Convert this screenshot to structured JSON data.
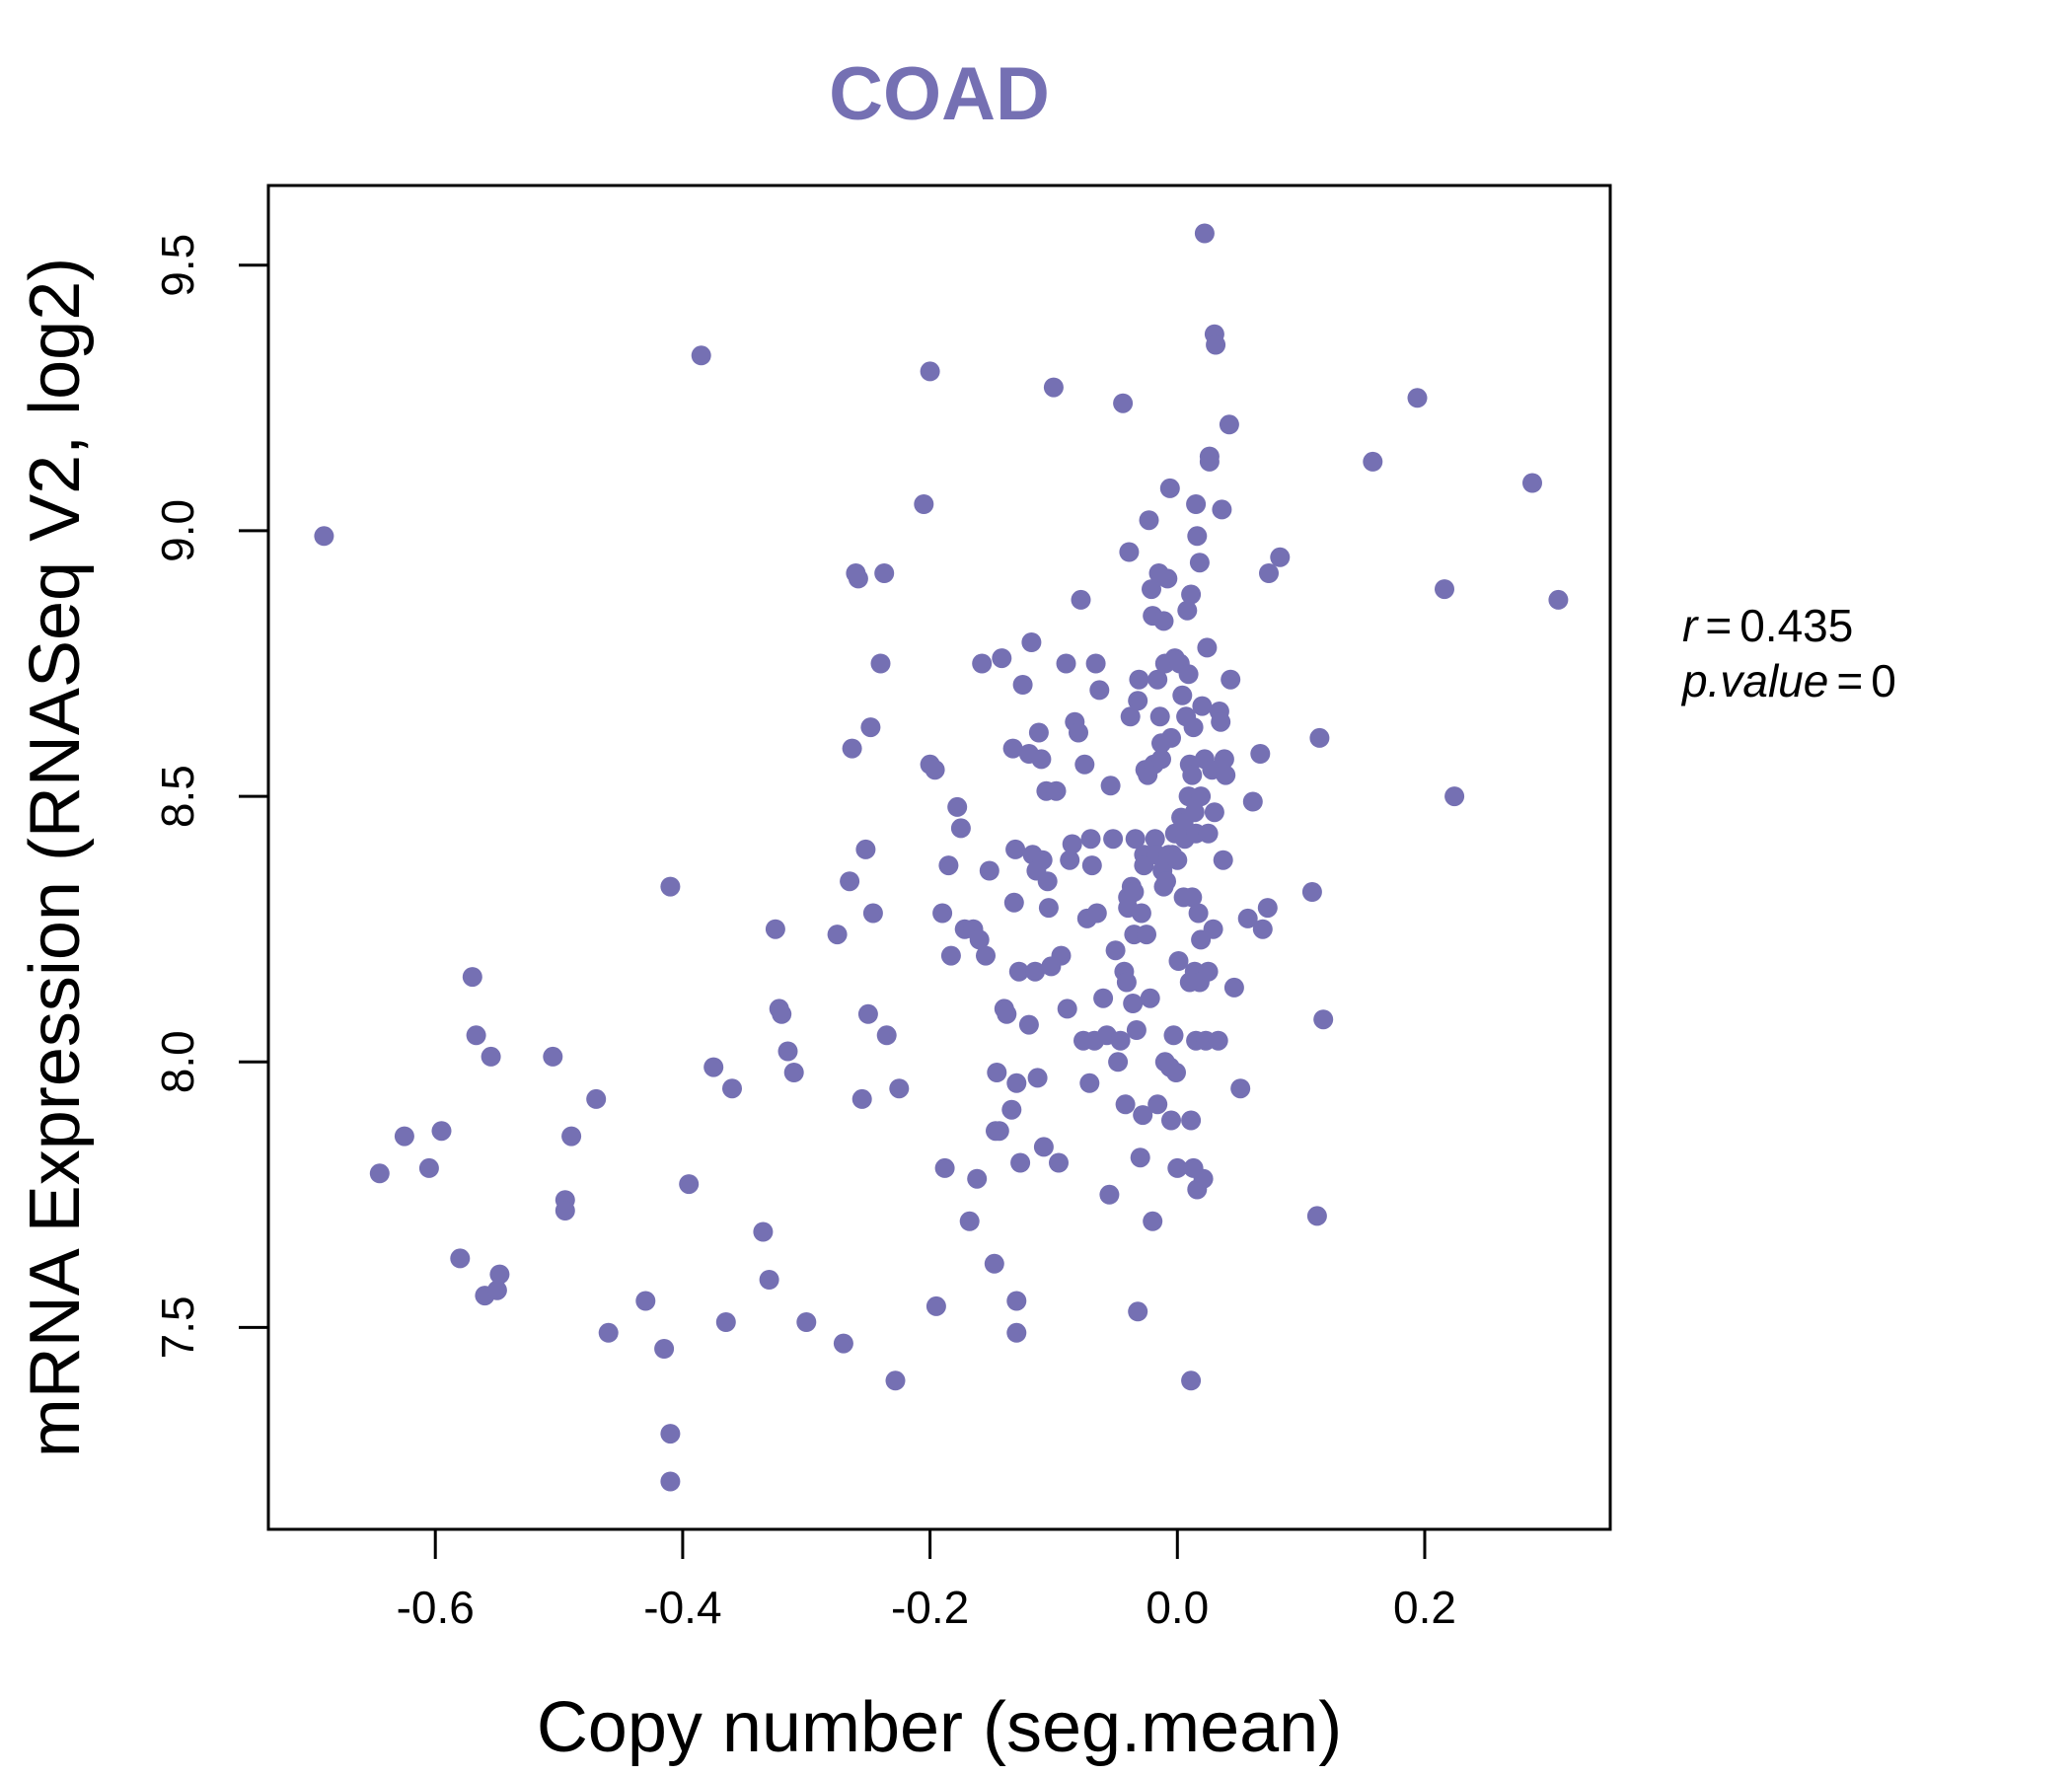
{
  "chart_data": {
    "type": "scatter",
    "title": "COAD",
    "xlabel": "Copy number (seg.mean)",
    "ylabel": "mRNA Expression (RNASeq V2, log2)",
    "xlim": [
      -0.735,
      0.35
    ],
    "ylim": [
      7.12,
      9.65
    ],
    "xticks": [
      -0.6,
      -0.4,
      -0.2,
      0.0,
      0.2
    ],
    "xtick_labels": [
      "-0.6",
      "-0.4",
      "-0.2",
      "0.0",
      "0.2"
    ],
    "yticks": [
      7.5,
      8.0,
      8.5,
      9.0,
      9.5
    ],
    "ytick_labels": [
      "7.5",
      "8.0",
      "8.5",
      "9.0",
      "9.5"
    ],
    "grid": false,
    "point_color": "#7570B3",
    "annotation": {
      "r_label": "r",
      "r_value": "0.435",
      "p_label": "p.value",
      "p_value": "0"
    },
    "points": [
      [
        -0.69,
        8.99
      ],
      [
        -0.645,
        7.79
      ],
      [
        -0.625,
        7.86
      ],
      [
        -0.605,
        7.8
      ],
      [
        -0.595,
        7.87
      ],
      [
        -0.58,
        7.63
      ],
      [
        -0.57,
        8.16
      ],
      [
        -0.567,
        8.05
      ],
      [
        -0.56,
        7.56
      ],
      [
        -0.555,
        8.01
      ],
      [
        -0.55,
        7.57
      ],
      [
        -0.548,
        7.6
      ],
      [
        -0.505,
        8.01
      ],
      [
        -0.495,
        7.74
      ],
      [
        -0.495,
        7.72
      ],
      [
        -0.49,
        7.86
      ],
      [
        -0.47,
        7.93
      ],
      [
        -0.46,
        7.49
      ],
      [
        -0.43,
        7.55
      ],
      [
        -0.415,
        7.46
      ],
      [
        -0.41,
        8.33
      ],
      [
        -0.41,
        7.3
      ],
      [
        -0.41,
        7.21
      ],
      [
        -0.395,
        7.77
      ],
      [
        -0.385,
        9.33
      ],
      [
        -0.375,
        7.99
      ],
      [
        -0.365,
        7.51
      ],
      [
        -0.36,
        7.95
      ],
      [
        -0.335,
        7.68
      ],
      [
        -0.33,
        7.59
      ],
      [
        -0.325,
        8.25
      ],
      [
        -0.322,
        8.1
      ],
      [
        -0.32,
        8.09
      ],
      [
        -0.315,
        8.02
      ],
      [
        -0.31,
        7.98
      ],
      [
        -0.3,
        7.51
      ],
      [
        -0.275,
        8.24
      ],
      [
        -0.27,
        7.47
      ],
      [
        -0.265,
        8.34
      ],
      [
        -0.263,
        8.59
      ],
      [
        -0.26,
        8.92
      ],
      [
        -0.258,
        8.91
      ],
      [
        -0.255,
        7.93
      ],
      [
        -0.252,
        8.4
      ],
      [
        -0.25,
        8.09
      ],
      [
        -0.248,
        8.63
      ],
      [
        -0.246,
        8.28
      ],
      [
        -0.24,
        8.75
      ],
      [
        -0.237,
        8.92
      ],
      [
        -0.235,
        8.05
      ],
      [
        -0.228,
        7.4
      ],
      [
        -0.225,
        7.95
      ],
      [
        -0.205,
        9.05
      ],
      [
        -0.2,
        8.56
      ],
      [
        -0.2,
        9.3
      ],
      [
        -0.196,
        8.55
      ],
      [
        -0.195,
        7.54
      ],
      [
        -0.19,
        8.28
      ],
      [
        -0.188,
        7.8
      ],
      [
        -0.185,
        8.37
      ],
      [
        -0.183,
        8.2
      ],
      [
        -0.178,
        8.48
      ],
      [
        -0.175,
        8.44
      ],
      [
        -0.172,
        8.25
      ],
      [
        -0.168,
        7.7
      ],
      [
        -0.165,
        8.25
      ],
      [
        -0.162,
        7.78
      ],
      [
        -0.16,
        8.23
      ],
      [
        -0.158,
        8.75
      ],
      [
        -0.155,
        8.2
      ],
      [
        -0.152,
        8.36
      ],
      [
        -0.148,
        7.62
      ],
      [
        -0.147,
        7.87
      ],
      [
        -0.146,
        7.98
      ],
      [
        -0.144,
        7.87
      ],
      [
        -0.142,
        8.76
      ],
      [
        -0.14,
        8.1
      ],
      [
        -0.138,
        8.09
      ],
      [
        -0.134,
        7.91
      ],
      [
        -0.133,
        8.59
      ],
      [
        -0.132,
        8.3
      ],
      [
        -0.131,
        8.4
      ],
      [
        -0.13,
        7.96
      ],
      [
        -0.13,
        7.55
      ],
      [
        -0.13,
        7.49
      ],
      [
        -0.128,
        8.17
      ],
      [
        -0.127,
        7.81
      ],
      [
        -0.125,
        8.71
      ],
      [
        -0.12,
        8.58
      ],
      [
        -0.12,
        8.07
      ],
      [
        -0.118,
        8.79
      ],
      [
        -0.117,
        8.39
      ],
      [
        -0.115,
        8.17
      ],
      [
        -0.114,
        8.36
      ],
      [
        -0.113,
        7.97
      ],
      [
        -0.112,
        8.62
      ],
      [
        -0.11,
        8.57
      ],
      [
        -0.109,
        8.38
      ],
      [
        -0.108,
        7.84
      ],
      [
        -0.106,
        8.51
      ],
      [
        -0.105,
        8.34
      ],
      [
        -0.104,
        8.29
      ],
      [
        -0.102,
        8.18
      ],
      [
        -0.1,
        9.27
      ],
      [
        -0.098,
        8.51
      ],
      [
        -0.096,
        7.81
      ],
      [
        -0.094,
        8.2
      ],
      [
        -0.09,
        8.75
      ],
      [
        -0.089,
        8.1
      ],
      [
        -0.087,
        8.38
      ],
      [
        -0.085,
        8.41
      ],
      [
        -0.083,
        8.64
      ],
      [
        -0.08,
        8.62
      ],
      [
        -0.078,
        8.87
      ],
      [
        -0.076,
        8.04
      ],
      [
        -0.075,
        8.56
      ],
      [
        -0.073,
        8.27
      ],
      [
        -0.071,
        7.96
      ],
      [
        -0.07,
        8.42
      ],
      [
        -0.069,
        8.37
      ],
      [
        -0.067,
        8.04
      ],
      [
        -0.066,
        8.75
      ],
      [
        -0.065,
        8.28
      ],
      [
        -0.063,
        8.7
      ],
      [
        -0.06,
        8.12
      ],
      [
        -0.057,
        8.05
      ],
      [
        -0.055,
        7.75
      ],
      [
        -0.054,
        8.52
      ],
      [
        -0.052,
        8.42
      ],
      [
        -0.05,
        8.21
      ],
      [
        -0.048,
        8.0
      ],
      [
        -0.046,
        8.04
      ],
      [
        -0.044,
        9.24
      ],
      [
        -0.043,
        8.17
      ],
      [
        -0.042,
        7.92
      ],
      [
        -0.041,
        8.15
      ],
      [
        -0.04,
        8.31
      ],
      [
        -0.04,
        8.29
      ],
      [
        -0.039,
        8.96
      ],
      [
        -0.038,
        8.65
      ],
      [
        -0.037,
        8.33
      ],
      [
        -0.036,
        8.11
      ],
      [
        -0.035,
        8.32
      ],
      [
        -0.035,
        8.24
      ],
      [
        -0.034,
        8.42
      ],
      [
        -0.033,
        8.06
      ],
      [
        -0.032,
        8.68
      ],
      [
        -0.032,
        7.53
      ],
      [
        -0.031,
        8.72
      ],
      [
        -0.03,
        7.82
      ],
      [
        -0.029,
        8.28
      ],
      [
        -0.028,
        7.9
      ],
      [
        -0.027,
        8.39
      ],
      [
        -0.027,
        8.37
      ],
      [
        -0.026,
        8.55
      ],
      [
        -0.025,
        8.24
      ],
      [
        -0.024,
        8.54
      ],
      [
        -0.023,
        9.02
      ],
      [
        -0.022,
        8.12
      ],
      [
        -0.021,
        8.89
      ],
      [
        -0.02,
        7.7
      ],
      [
        -0.02,
        8.84
      ],
      [
        -0.019,
        8.56
      ],
      [
        -0.018,
        8.42
      ],
      [
        -0.017,
        8.39
      ],
      [
        -0.016,
        7.92
      ],
      [
        -0.016,
        8.72
      ],
      [
        -0.015,
        8.92
      ],
      [
        -0.014,
        8.65
      ],
      [
        -0.013,
        8.57
      ],
      [
        -0.013,
        8.6
      ],
      [
        -0.012,
        8.36
      ],
      [
        -0.011,
        8.33
      ],
      [
        -0.011,
        8.83
      ],
      [
        -0.01,
        8.75
      ],
      [
        -0.01,
        8.0
      ],
      [
        -0.009,
        8.34
      ],
      [
        -0.008,
        8.91
      ],
      [
        -0.007,
        8.39
      ],
      [
        -0.006,
        9.08
      ],
      [
        -0.006,
        7.99
      ],
      [
        -0.005,
        8.61
      ],
      [
        -0.005,
        7.89
      ],
      [
        -0.004,
        8.39
      ],
      [
        -0.003,
        8.05
      ],
      [
        -0.002,
        8.76
      ],
      [
        -0.002,
        8.43
      ],
      [
        -0.001,
        7.98
      ],
      [
        0.0,
        8.38
      ],
      [
        0.0,
        7.8
      ],
      [
        0.001,
        8.19
      ],
      [
        0.002,
        8.75
      ],
      [
        0.003,
        8.46
      ],
      [
        0.004,
        8.69
      ],
      [
        0.005,
        8.31
      ],
      [
        0.005,
        8.45
      ],
      [
        0.006,
        8.42
      ],
      [
        0.007,
        8.65
      ],
      [
        0.008,
        8.85
      ],
      [
        0.009,
        8.73
      ],
      [
        0.009,
        8.5
      ],
      [
        0.01,
        8.15
      ],
      [
        0.01,
        8.56
      ],
      [
        0.011,
        8.88
      ],
      [
        0.011,
        7.89
      ],
      [
        0.011,
        7.4
      ],
      [
        0.012,
        8.54
      ],
      [
        0.012,
        8.31
      ],
      [
        0.013,
        8.63
      ],
      [
        0.013,
        7.8
      ],
      [
        0.014,
        8.47
      ],
      [
        0.014,
        8.17
      ],
      [
        0.015,
        8.43
      ],
      [
        0.015,
        9.05
      ],
      [
        0.015,
        8.04
      ],
      [
        0.016,
        8.99
      ],
      [
        0.016,
        7.76
      ],
      [
        0.017,
        8.28
      ],
      [
        0.018,
        8.94
      ],
      [
        0.018,
        8.15
      ],
      [
        0.019,
        8.23
      ],
      [
        0.019,
        8.5
      ],
      [
        0.02,
        8.67
      ],
      [
        0.021,
        7.78
      ],
      [
        0.022,
        9.56
      ],
      [
        0.022,
        8.57
      ],
      [
        0.023,
        8.04
      ],
      [
        0.024,
        8.78
      ],
      [
        0.025,
        8.17
      ],
      [
        0.025,
        8.43
      ],
      [
        0.026,
        9.13
      ],
      [
        0.026,
        9.14
      ],
      [
        0.028,
        8.55
      ],
      [
        0.029,
        8.25
      ],
      [
        0.03,
        9.37
      ],
      [
        0.03,
        8.47
      ],
      [
        0.031,
        9.35
      ],
      [
        0.033,
        8.04
      ],
      [
        0.034,
        8.66
      ],
      [
        0.035,
        8.64
      ],
      [
        0.036,
        9.04
      ],
      [
        0.037,
        8.38
      ],
      [
        0.038,
        8.57
      ],
      [
        0.039,
        8.54
      ],
      [
        0.042,
        9.2
      ],
      [
        0.043,
        8.72
      ],
      [
        0.046,
        8.14
      ],
      [
        0.051,
        7.95
      ],
      [
        0.057,
        8.27
      ],
      [
        0.061,
        8.49
      ],
      [
        0.067,
        8.58
      ],
      [
        0.069,
        8.25
      ],
      [
        0.073,
        8.29
      ],
      [
        0.074,
        8.92
      ],
      [
        0.083,
        8.95
      ],
      [
        0.109,
        8.32
      ],
      [
        0.113,
        7.71
      ],
      [
        0.115,
        8.61
      ],
      [
        0.118,
        8.08
      ],
      [
        0.158,
        9.13
      ],
      [
        0.194,
        9.25
      ],
      [
        0.216,
        8.89
      ],
      [
        0.224,
        8.5
      ],
      [
        0.287,
        9.09
      ],
      [
        0.308,
        8.87
      ]
    ]
  }
}
